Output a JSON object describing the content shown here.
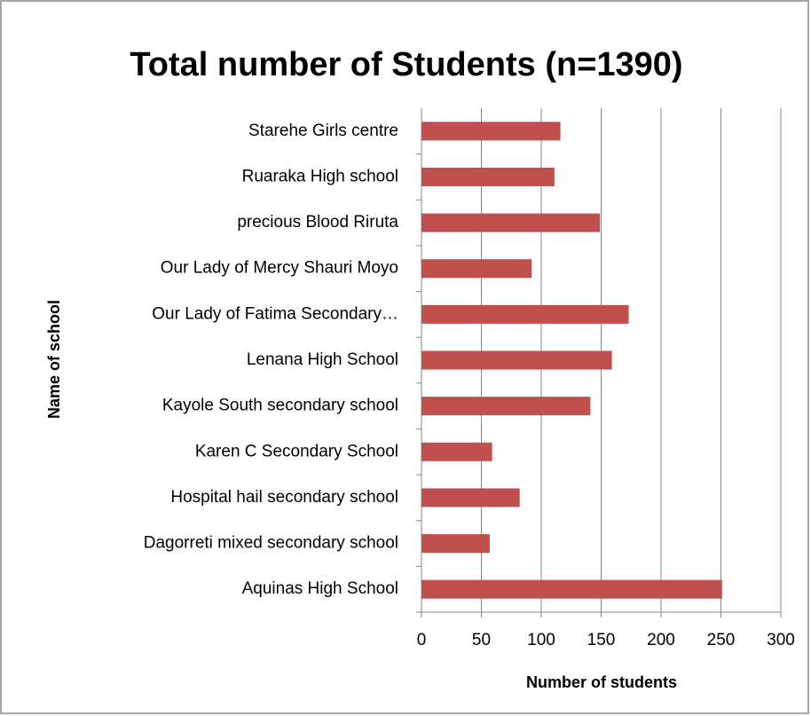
{
  "chart_data": {
    "type": "bar",
    "orientation": "horizontal",
    "title": "Total number of Students (n=1390)",
    "x_label": "Number of students",
    "y_label": "Name of school",
    "categories": [
      "Aquinas High School",
      "Dagorreti mixed secondary school",
      "Hospital hail secondary school",
      "Karen C Secondary School",
      "Kayole South secondary school",
      "Lenana High School",
      "Our Lady of Fatima Secondary…",
      "Our Lady of Mercy Shauri Moyo",
      "precious Blood Riruta",
      "Ruaraka High school",
      "Starehe Girls centre"
    ],
    "values": [
      251,
      57,
      82,
      59,
      141,
      159,
      173,
      92,
      149,
      111,
      116
    ],
    "color": "#c0504d",
    "xlim": [
      0,
      300
    ],
    "xticks": [
      0,
      50,
      100,
      150,
      200,
      250,
      300
    ],
    "grid": true
  }
}
